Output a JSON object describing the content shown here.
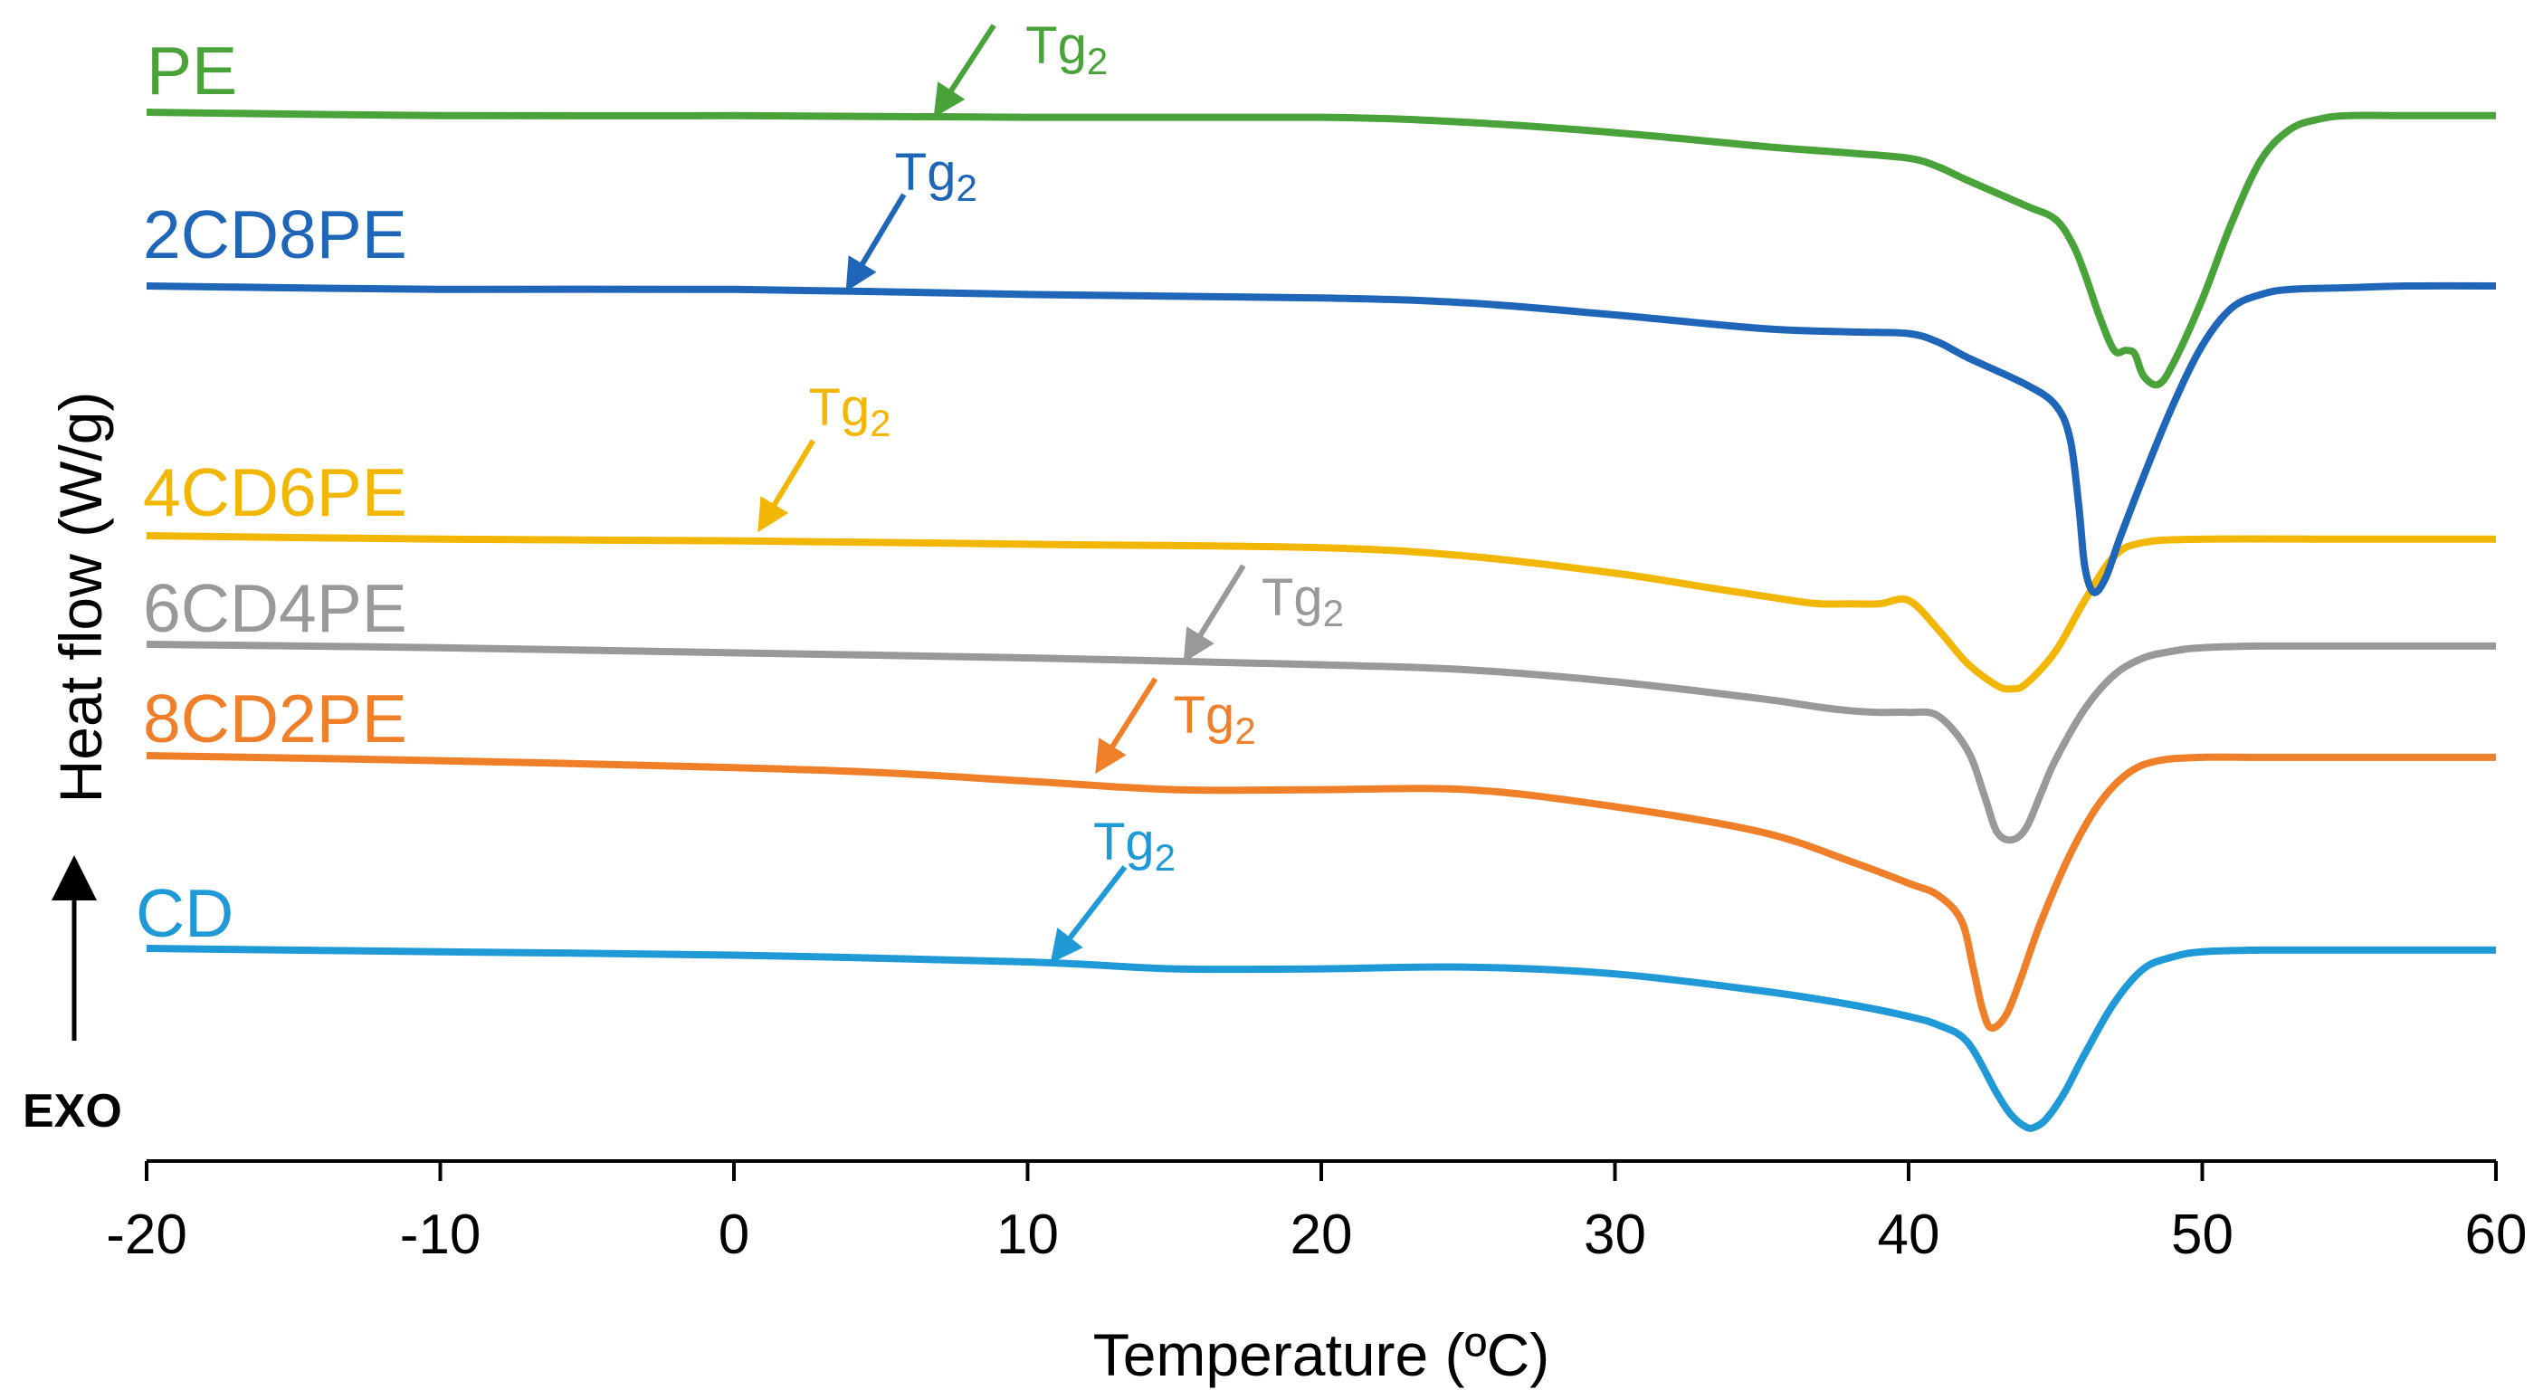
{
  "chart_data": {
    "type": "line",
    "title": "",
    "xlabel": "Temperature  (ºC)",
    "ylabel": "Heat  flow  (W/g)",
    "direction_label": "EXO",
    "xlim": [
      -20,
      60
    ],
    "xticks": [
      -20,
      -10,
      0,
      10,
      20,
      30,
      40,
      50,
      60
    ],
    "xtick_labels": [
      "-20",
      "-10",
      "0",
      "10",
      "20",
      "30",
      "40",
      "50",
      "60"
    ],
    "y_units": "arbitrary (curves vertically offset, no y scale shown)",
    "annotation_text": {
      "main": "Tg",
      "sub": "2"
    },
    "series": [
      {
        "name": "PE",
        "color": "#4aa33a",
        "offset": 0,
        "tg2_x": 7.0,
        "x": [
          -20,
          -10,
          0,
          10,
          20,
          25,
          30,
          35,
          38,
          40,
          41,
          42,
          44,
          45,
          45.6,
          46,
          46.5,
          47,
          47.4,
          47.7,
          48,
          48.5,
          49,
          50,
          51,
          52,
          53,
          54,
          55,
          57,
          60
        ],
        "y": [
          0,
          -0.02,
          -0.02,
          -0.03,
          -0.03,
          -0.06,
          -0.12,
          -0.2,
          -0.24,
          -0.27,
          -0.32,
          -0.4,
          -0.55,
          -0.63,
          -0.78,
          -0.95,
          -1.2,
          -1.4,
          -1.4,
          -1.42,
          -1.55,
          -1.6,
          -1.48,
          -1.1,
          -0.65,
          -0.28,
          -0.1,
          -0.04,
          -0.02,
          -0.02,
          -0.02
        ]
      },
      {
        "name": "2CD8PE",
        "color": "#1f66b8",
        "offset": 0,
        "tg2_x": 4.0,
        "x": [
          -20,
          -10,
          0,
          10,
          20,
          25,
          30,
          35,
          38,
          40,
          41,
          42,
          44,
          45,
          45.5,
          45.8,
          46,
          46.3,
          46.7,
          47.2,
          48,
          49,
          50,
          51,
          52,
          53,
          55,
          57,
          60
        ],
        "y": [
          0,
          -0.02,
          -0.02,
          -0.05,
          -0.07,
          -0.1,
          -0.17,
          -0.25,
          -0.27,
          -0.28,
          -0.33,
          -0.42,
          -0.58,
          -0.7,
          -0.9,
          -1.3,
          -1.65,
          -1.8,
          -1.72,
          -1.48,
          -1.12,
          -0.7,
          -0.35,
          -0.13,
          -0.05,
          -0.02,
          -0.01,
          0,
          0
        ]
      },
      {
        "name": "4CD6PE",
        "color": "#f2b705",
        "offset": 0,
        "tg2_x": 1.0,
        "x": [
          -20,
          -10,
          0,
          10,
          20,
          25,
          30,
          33,
          36,
          37,
          38,
          39,
          40,
          41,
          42,
          43,
          43.5,
          44,
          45,
          46,
          47,
          48,
          50,
          55,
          60
        ],
        "y": [
          0,
          -0.02,
          -0.03,
          -0.05,
          -0.07,
          -0.12,
          -0.22,
          -0.3,
          -0.38,
          -0.4,
          -0.4,
          -0.4,
          -0.38,
          -0.55,
          -0.75,
          -0.88,
          -0.9,
          -0.87,
          -0.68,
          -0.38,
          -0.12,
          -0.04,
          -0.02,
          -0.02,
          -0.02
        ]
      },
      {
        "name": "6CD4PE",
        "color": "#999999",
        "offset": 0,
        "tg2_x": 15.5,
        "x": [
          -20,
          -10,
          0,
          10,
          20,
          25,
          30,
          35,
          37,
          38,
          39,
          40,
          41,
          42,
          42.6,
          43,
          43.5,
          44,
          44.5,
          45,
          46,
          47,
          48,
          49,
          50,
          52,
          55,
          60
        ],
        "y": [
          0,
          -0.02,
          -0.05,
          -0.08,
          -0.12,
          -0.15,
          -0.22,
          -0.32,
          -0.37,
          -0.39,
          -0.4,
          -0.4,
          -0.42,
          -0.62,
          -0.9,
          -1.1,
          -1.15,
          -1.08,
          -0.88,
          -0.68,
          -0.38,
          -0.18,
          -0.08,
          -0.04,
          -0.02,
          -0.01,
          -0.01,
          -0.01
        ]
      },
      {
        "name": "8CD2PE",
        "color": "#f07f2a",
        "offset": 0,
        "tg2_x": 12.5,
        "x": [
          -20,
          -10,
          0,
          5,
          10,
          15,
          20,
          25,
          30,
          35,
          38,
          40,
          41,
          41.8,
          42.2,
          42.5,
          42.8,
          43.3,
          43.8,
          44.5,
          45.5,
          46.5,
          47.5,
          48.5,
          50,
          52,
          55,
          60
        ],
        "y": [
          0,
          -0.03,
          -0.07,
          -0.1,
          -0.15,
          -0.2,
          -0.2,
          -0.2,
          -0.3,
          -0.45,
          -0.62,
          -0.75,
          -0.82,
          -0.97,
          -1.25,
          -1.48,
          -1.6,
          -1.53,
          -1.32,
          -0.98,
          -0.58,
          -0.28,
          -0.1,
          -0.03,
          -0.01,
          -0.01,
          -0.01,
          -0.01
        ]
      },
      {
        "name": "CD",
        "color": "#1f9ad6",
        "offset": 0,
        "tg2_x": 11.0,
        "x": [
          -20,
          -10,
          0,
          10,
          15,
          20,
          25,
          30,
          35,
          38,
          40,
          41,
          42,
          43,
          43.5,
          44,
          44.3,
          44.7,
          45.3,
          46,
          47,
          48,
          49,
          50,
          52,
          55,
          60
        ],
        "y": [
          0,
          -0.02,
          -0.04,
          -0.08,
          -0.12,
          -0.12,
          -0.11,
          -0.15,
          -0.25,
          -0.33,
          -0.4,
          -0.45,
          -0.55,
          -0.85,
          -0.98,
          -1.05,
          -1.05,
          -1.0,
          -0.85,
          -0.62,
          -0.32,
          -0.12,
          -0.05,
          -0.02,
          -0.01,
          -0.01,
          -0.01
        ]
      }
    ]
  }
}
